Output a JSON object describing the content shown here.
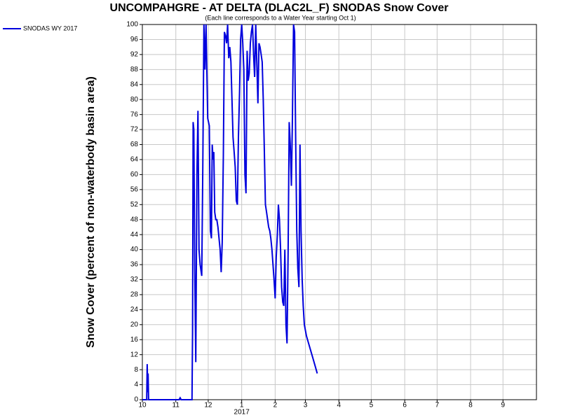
{
  "chart_data": {
    "type": "line",
    "title": "UNCOMPAHGRE - AT DELTA (DLAC2L_F) SNODAS Snow Cover",
    "subtitle": "(Each line corresponds to a Water Year starting Oct 1)",
    "y_label": "Snow Cover (percent of non-waterbody basin area)",
    "x_annotation": "2017",
    "x": [
      0,
      4,
      4.5,
      5,
      5.3,
      5.8,
      34,
      35,
      36,
      46,
      46.5,
      47,
      47.7,
      48.5,
      49.5,
      50.5,
      51.5,
      52.5,
      53.5,
      55,
      56,
      57,
      58,
      59,
      60.5,
      62,
      63,
      64,
      64.7,
      65.5,
      66.2,
      67,
      68,
      69,
      70,
      72,
      73,
      74,
      75,
      76,
      77,
      78,
      79,
      80,
      81,
      82,
      83,
      84,
      85,
      86,
      87,
      88,
      89,
      90,
      91,
      92,
      93,
      94,
      95,
      96,
      97,
      98,
      99,
      100,
      101,
      102,
      103,
      104,
      105,
      106,
      107,
      108,
      109,
      110,
      111,
      112,
      113,
      114,
      115,
      116,
      117,
      118,
      119,
      120,
      122,
      123,
      124,
      125,
      126,
      127,
      128,
      129,
      130,
      131,
      132,
      133,
      134,
      135,
      136,
      137,
      138,
      139,
      140,
      141,
      142,
      143,
      144,
      145,
      146,
      147,
      148,
      149,
      150,
      152,
      154,
      156,
      158,
      160,
      162
    ],
    "series": [
      {
        "name": "SNODAS WY 2017",
        "color": "#0000dd",
        "values": [
          0,
          0,
          9.5,
          2,
          7,
          0,
          0,
          0.5,
          0,
          0,
          18,
          74,
          72,
          35,
          10,
          60,
          77,
          40,
          36,
          33,
          62,
          100,
          88,
          100,
          75,
          73,
          45,
          43,
          68,
          64,
          66,
          50,
          48,
          48,
          46,
          40,
          34,
          42,
          65,
          98,
          97,
          95,
          100,
          91,
          94,
          90,
          80,
          70,
          66,
          62,
          53,
          52,
          70,
          82,
          96,
          100,
          95,
          88,
          60,
          55,
          93,
          85,
          87,
          95,
          98,
          100,
          92,
          86,
          100,
          90,
          79,
          95,
          94,
          92,
          90,
          80,
          66,
          52,
          50,
          48,
          46,
          45,
          43,
          40,
          32,
          27,
          38,
          44,
          52,
          48,
          40,
          30,
          26,
          25,
          40,
          20,
          15,
          40,
          74,
          68,
          57,
          75,
          100,
          98,
          70,
          45,
          35,
          30,
          68,
          45,
          32,
          25,
          20,
          17,
          15,
          13,
          11,
          9,
          7
        ]
      }
    ],
    "xlim": [
      0,
      365
    ],
    "xticks": [
      {
        "value": 0,
        "label": "10"
      },
      {
        "value": 31,
        "label": "11"
      },
      {
        "value": 61,
        "label": "12"
      },
      {
        "value": 92,
        "label": "1"
      },
      {
        "value": 123,
        "label": "2"
      },
      {
        "value": 151,
        "label": "3"
      },
      {
        "value": 182,
        "label": "4"
      },
      {
        "value": 212,
        "label": "5"
      },
      {
        "value": 243,
        "label": "6"
      },
      {
        "value": 273,
        "label": "7"
      },
      {
        "value": 304,
        "label": "8"
      },
      {
        "value": 334,
        "label": "9"
      }
    ],
    "ylim": [
      0,
      100
    ],
    "yticks": [
      0,
      4,
      8,
      12,
      16,
      20,
      24,
      28,
      32,
      36,
      40,
      44,
      48,
      52,
      56,
      60,
      64,
      68,
      72,
      76,
      80,
      84,
      88,
      92,
      96,
      100
    ],
    "grid": true,
    "legend": "top-left"
  }
}
